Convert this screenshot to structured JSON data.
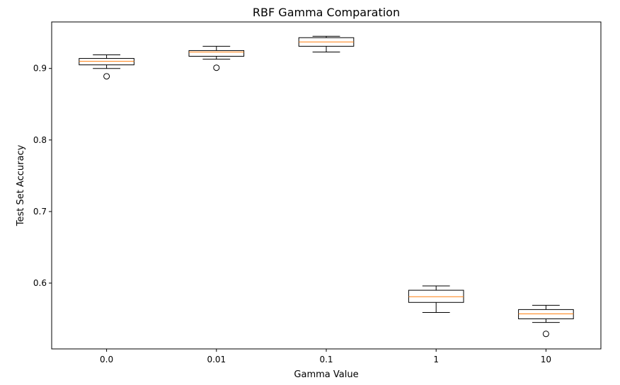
{
  "chart_data": {
    "type": "box",
    "title": "RBF Gamma Comparation",
    "xlabel": "Gamma Value",
    "ylabel": "Test Set Accuracy",
    "ylim": [
      0.508,
      0.965
    ],
    "yticks": [
      0.6,
      0.7,
      0.8,
      0.9
    ],
    "ytick_labels": [
      "0.6",
      "0.7",
      "0.8",
      "0.9"
    ],
    "grid": false,
    "categories": [
      "0.0",
      "0.01",
      "0.1",
      "1",
      "10"
    ],
    "boxes": [
      {
        "whisker_low": 0.9,
        "q1": 0.905,
        "median": 0.91,
        "q3": 0.914,
        "whisker_high": 0.919,
        "outliers": [
          0.889
        ]
      },
      {
        "whisker_low": 0.913,
        "q1": 0.917,
        "median": 0.923,
        "q3": 0.925,
        "whisker_high": 0.931,
        "outliers": [
          0.901
        ]
      },
      {
        "whisker_low": 0.923,
        "q1": 0.931,
        "median": 0.937,
        "q3": 0.943,
        "whisker_high": 0.945,
        "outliers": []
      },
      {
        "whisker_low": 0.559,
        "q1": 0.573,
        "median": 0.581,
        "q3": 0.59,
        "whisker_high": 0.596,
        "outliers": []
      },
      {
        "whisker_low": 0.545,
        "q1": 0.55,
        "median": 0.557,
        "q3": 0.563,
        "whisker_high": 0.569,
        "outliers": [
          0.529
        ]
      }
    ],
    "colors": {
      "box": "#000000",
      "median": "#ff7f0e",
      "background": "#ffffff"
    }
  }
}
